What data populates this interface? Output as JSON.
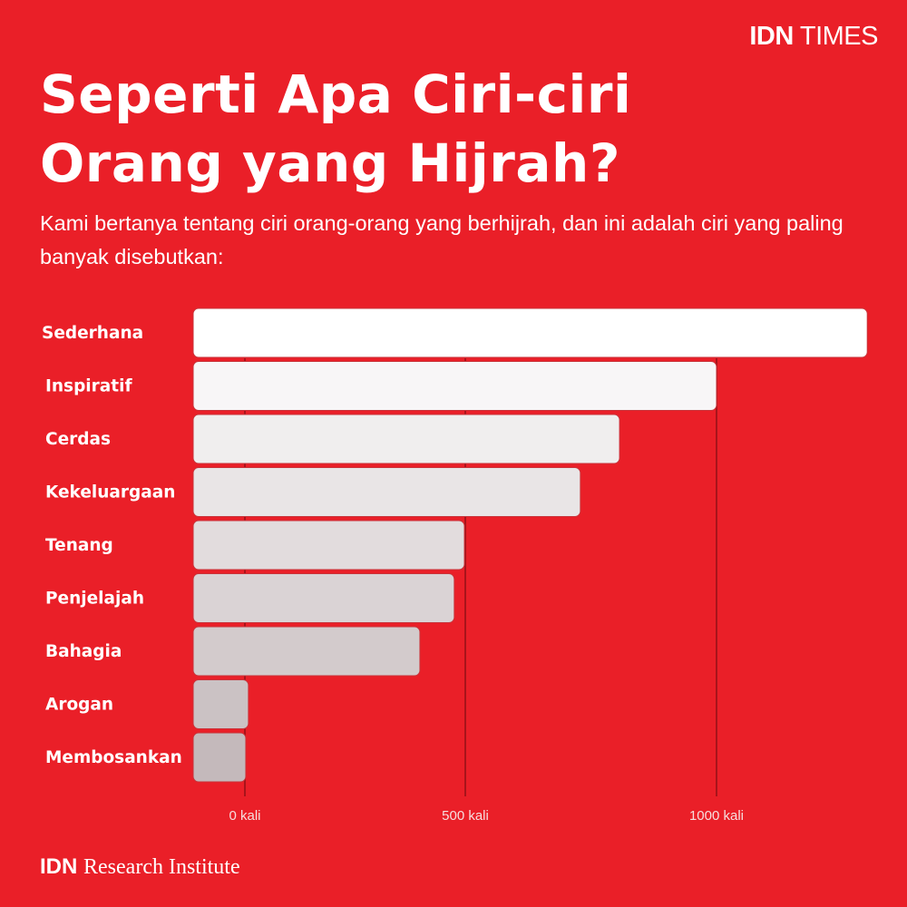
{
  "brand": {
    "bold": "IDN",
    "rest": "TIMES"
  },
  "title": "Seperti Apa Ciri-ciri Orang yang Hijrah?",
  "subtitle": "Kami bertanya tentang ciri orang-orang yang berhijrah, dan ini adalah ciri yang paling banyak disebutkan:",
  "footer": {
    "bold": "IDN",
    "rest": "Research Institute"
  },
  "colors": {
    "background": "#ea1f28",
    "gridline": "#a8141b",
    "bar_top": "#ffffff",
    "bar_bottom": "#c4b9bb"
  },
  "chart_data": {
    "type": "bar",
    "orientation": "horizontal",
    "categories": [
      "Sederhana",
      "Inspiratif",
      "Cerdas",
      "Kekeluargaan",
      "Tenang",
      "Penjelajah",
      "Bahagia",
      "Arogan",
      "Membosankan"
    ],
    "values": [
      1300,
      1000,
      807,
      729,
      498,
      475,
      397,
      8,
      2
    ],
    "xticks": [
      0,
      500,
      1000
    ],
    "xtick_labels": [
      "0 kali",
      "500 kali",
      "1000 kali"
    ],
    "xlabel": "",
    "ylabel": "",
    "grid": true
  }
}
